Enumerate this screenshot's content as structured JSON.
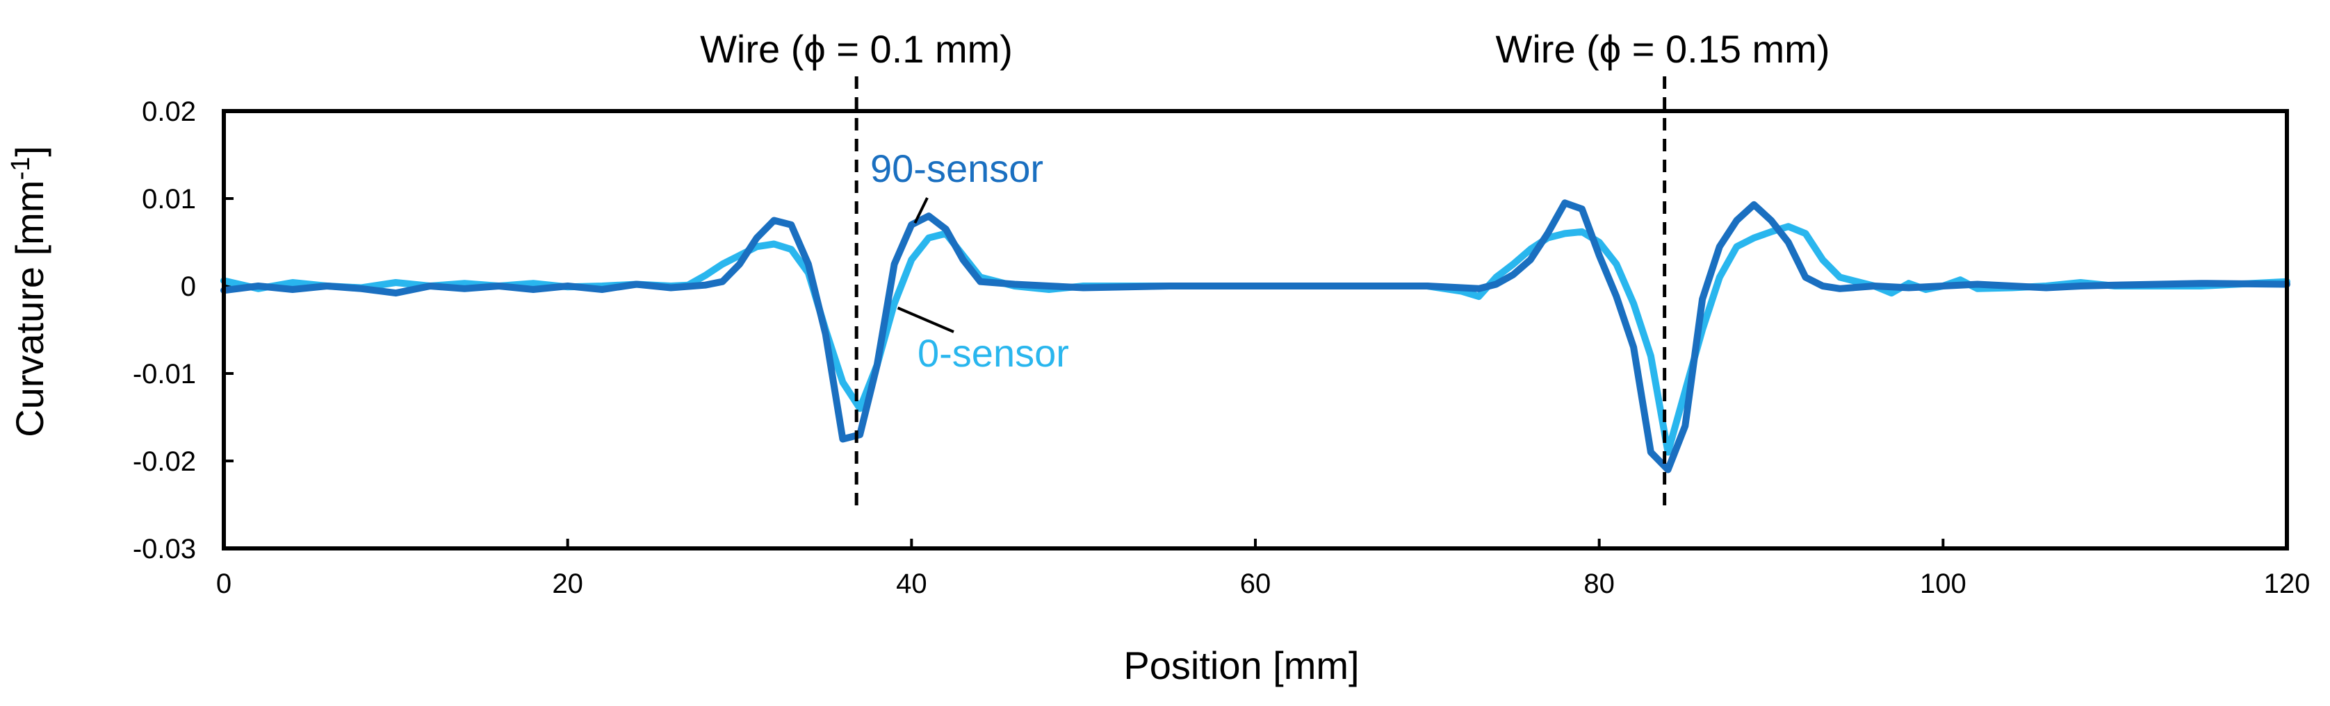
{
  "chart_data": {
    "type": "line",
    "title": "",
    "xlabel": "Position [mm]",
    "ylabel": "Curvature [mm⁻¹]",
    "xlim": [
      0,
      120
    ],
    "ylim": [
      -0.03,
      0.02
    ],
    "xticks": [
      0,
      20,
      40,
      60,
      80,
      100,
      120
    ],
    "yticks": [
      -0.03,
      -0.02,
      -0.01,
      0,
      0.01,
      0.02
    ],
    "xtick_labels": [
      "0",
      "20",
      "40",
      "60",
      "80",
      "100",
      "120"
    ],
    "ytick_labels": [
      "-0.03",
      "-0.02",
      "-0.01",
      "0",
      "0.01",
      "0.02"
    ],
    "grid": false,
    "series": [
      {
        "name": "0-sensor",
        "color": "#29B6EE",
        "x": [
          0,
          2,
          4,
          6,
          8,
          10,
          12,
          14,
          16,
          18,
          20,
          22,
          24,
          26,
          27,
          28,
          29,
          30,
          31,
          32,
          33,
          34,
          35,
          36,
          37,
          38,
          39,
          40,
          41,
          42,
          43,
          44,
          46,
          48,
          50,
          55,
          60,
          65,
          70,
          72,
          73,
          74,
          75,
          76,
          77,
          78,
          79,
          80,
          81,
          82,
          83,
          84,
          85,
          86,
          87,
          88,
          89,
          90,
          91,
          92,
          93,
          94,
          96,
          97,
          98,
          99,
          100,
          101,
          102,
          104,
          106,
          108,
          110,
          115,
          120
        ],
        "values": [
          0.0006,
          -0.0003,
          0.0004,
          0,
          -0.0002,
          0.0004,
          0,
          0.0003,
          0,
          0.0003,
          -0.0001,
          0,
          0.0002,
          0,
          0.0001,
          0.0012,
          0.0025,
          0.0035,
          0.0045,
          0.0048,
          0.0042,
          0.0015,
          -0.005,
          -0.011,
          -0.014,
          -0.009,
          -0.002,
          0.003,
          0.0055,
          0.006,
          0.0035,
          0.001,
          0,
          -0.0004,
          0,
          0,
          0,
          0,
          0,
          -0.0006,
          -0.0012,
          0.001,
          0.0025,
          0.0042,
          0.0055,
          0.006,
          0.0062,
          0.005,
          0.0025,
          -0.002,
          -0.008,
          -0.019,
          -0.012,
          -0.005,
          0.001,
          0.0045,
          0.0055,
          0.0062,
          0.0068,
          0.006,
          0.003,
          0.001,
          0,
          -0.0008,
          0.0003,
          -0.0004,
          0,
          0.0007,
          -0.0003,
          -0.0002,
          0,
          0.0004,
          0,
          0,
          0.0005
        ]
      },
      {
        "name": "90-sensor",
        "color": "#1A6FC0",
        "x": [
          0,
          2,
          4,
          6,
          8,
          10,
          12,
          14,
          16,
          18,
          20,
          22,
          24,
          26,
          28,
          29,
          30,
          31,
          32,
          33,
          34,
          35,
          36,
          37,
          38,
          39,
          40,
          41,
          42,
          43,
          44,
          46,
          48,
          50,
          55,
          60,
          65,
          70,
          73,
          74,
          75,
          76,
          77,
          78,
          79,
          80,
          81,
          82,
          83,
          84,
          85,
          86,
          87,
          88,
          89,
          90,
          91,
          92,
          93,
          94,
          96,
          98,
          100,
          102,
          104,
          106,
          108,
          110,
          115,
          120
        ],
        "values": [
          -0.0005,
          0,
          -0.0004,
          0,
          -0.0003,
          -0.0008,
          0,
          -0.0003,
          0,
          -0.0004,
          0,
          -0.0004,
          0.0002,
          -0.0002,
          0.0001,
          0.0005,
          0.0025,
          0.0055,
          0.0075,
          0.007,
          0.0025,
          -0.0055,
          -0.0175,
          -0.017,
          -0.009,
          0.0025,
          0.007,
          0.008,
          0.0065,
          0.003,
          0.0005,
          0.0002,
          0,
          -0.0002,
          0,
          0,
          0,
          0,
          -0.0003,
          0.0002,
          0.0013,
          0.003,
          0.006,
          0.0095,
          0.0088,
          0.0035,
          -0.0012,
          -0.007,
          -0.019,
          -0.021,
          -0.016,
          -0.0015,
          0.0045,
          0.0075,
          0.0093,
          0.0075,
          0.005,
          0.001,
          0,
          -0.0003,
          0,
          -0.0002,
          0,
          0.0002,
          0,
          -0.0002,
          0,
          0.0001,
          0.0003,
          0.0002
        ]
      }
    ],
    "annotations": {
      "wire1": {
        "label": "Wire (ϕ = 0.1 mm)",
        "x": 36.8
      },
      "wire2": {
        "label": "Wire (ϕ = 0.15 mm)",
        "x": 83.8
      },
      "label_90": {
        "text": "90-sensor",
        "x": 38.5,
        "y": 0.0135,
        "pointer_to": [
          40.2,
          0.0072
        ]
      },
      "label_0": {
        "text": "0-sensor",
        "x": 41.2,
        "y": -0.0078,
        "pointer_to": [
          39.2,
          -0.0025
        ]
      }
    }
  }
}
